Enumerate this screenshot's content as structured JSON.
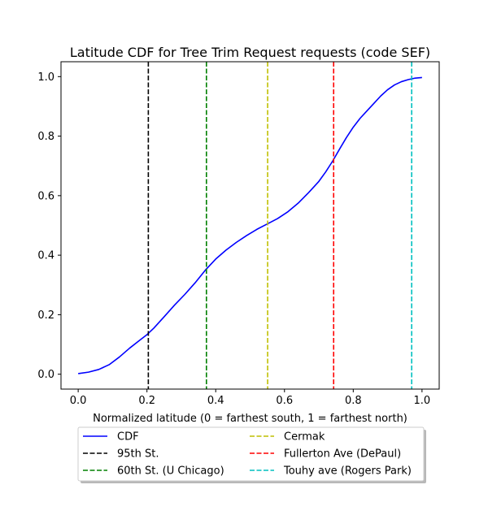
{
  "chart_data": {
    "type": "line",
    "title": "Latitude CDF for Tree Trim Request  requests (code SEF)",
    "xlabel": "Normalized latitude (0 = farthest south, 1 = farthest north)",
    "ylabel": "",
    "xlim": [
      -0.05,
      1.05
    ],
    "ylim": [
      -0.05,
      1.05
    ],
    "xticks": [
      0.0,
      0.2,
      0.4,
      0.6,
      0.8,
      1.0
    ],
    "xtick_labels": [
      "0.0",
      "0.2",
      "0.4",
      "0.6",
      "0.8",
      "1.0"
    ],
    "yticks": [
      0.0,
      0.2,
      0.4,
      0.6,
      0.8,
      1.0
    ],
    "ytick_labels": [
      "0.0",
      "0.2",
      "0.4",
      "0.6",
      "0.8",
      "1.0"
    ],
    "grid": false,
    "legend_placement": "below",
    "series": [
      {
        "name": "CDF",
        "color": "#0000ff",
        "style": "solid",
        "x": [
          0.0,
          0.03,
          0.06,
          0.09,
          0.12,
          0.15,
          0.18,
          0.2,
          0.22,
          0.25,
          0.28,
          0.31,
          0.34,
          0.37,
          0.4,
          0.43,
          0.46,
          0.49,
          0.52,
          0.55,
          0.58,
          0.61,
          0.64,
          0.67,
          0.7,
          0.72,
          0.74,
          0.76,
          0.78,
          0.8,
          0.82,
          0.84,
          0.86,
          0.88,
          0.9,
          0.92,
          0.94,
          0.96,
          0.98,
          1.0
        ],
        "y": [
          0.002,
          0.007,
          0.016,
          0.032,
          0.058,
          0.088,
          0.115,
          0.133,
          0.155,
          0.193,
          0.232,
          0.268,
          0.307,
          0.35,
          0.387,
          0.417,
          0.443,
          0.466,
          0.487,
          0.505,
          0.523,
          0.546,
          0.575,
          0.61,
          0.648,
          0.68,
          0.716,
          0.756,
          0.795,
          0.83,
          0.86,
          0.885,
          0.91,
          0.935,
          0.956,
          0.972,
          0.983,
          0.99,
          0.995,
          0.997
        ]
      }
    ],
    "vlines": [
      {
        "name": "95th St.",
        "x": 0.204,
        "color": "#000000"
      },
      {
        "name": "60th St. (U Chicago)",
        "x": 0.373,
        "color": "#008000"
      },
      {
        "name": "Cermak",
        "x": 0.551,
        "color": "#bfbf00"
      },
      {
        "name": "Fullerton Ave (DePaul)",
        "x": 0.743,
        "color": "#ff0000"
      },
      {
        "name": "Touhy ave (Rogers Park)",
        "x": 0.97,
        "color": "#00bfbf"
      }
    ]
  }
}
